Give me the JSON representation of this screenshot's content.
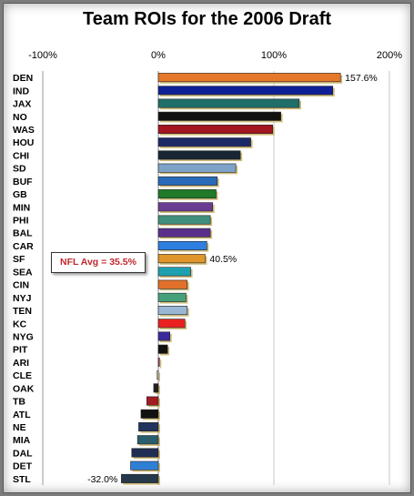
{
  "chart_data": {
    "type": "bar",
    "orientation": "horizontal",
    "title": "Team ROIs for the 2006 Draft",
    "xlim": [
      -100,
      200
    ],
    "xticks": [
      "-100%",
      "0%",
      "100%",
      "200%"
    ],
    "categories": [
      "DEN",
      "IND",
      "JAX",
      "NO",
      "WAS",
      "HOU",
      "CHI",
      "SD",
      "BUF",
      "GB",
      "MIN",
      "PHI",
      "BAL",
      "CAR",
      "SF",
      "SEA",
      "CIN",
      "NYJ",
      "TEN",
      "KC",
      "NYG",
      "PIT",
      "ARI",
      "CLE",
      "OAK",
      "TB",
      "ATL",
      "NE",
      "MIA",
      "DAL",
      "DET",
      "STL"
    ],
    "values": [
      157.6,
      151,
      122,
      106,
      99,
      80,
      71,
      67,
      51,
      50,
      47,
      45,
      45,
      42,
      40.5,
      28,
      25,
      24,
      25,
      23,
      10,
      8,
      1,
      -1,
      -4,
      -10,
      -15,
      -17,
      -18,
      -23,
      -24,
      -32.0
    ],
    "colors": [
      "#e6782b",
      "#0f1f96",
      "#1f6e6a",
      "#111111",
      "#a31520",
      "#1d2a66",
      "#182534",
      "#7ea2c8",
      "#2a6ab8",
      "#1f7a2a",
      "#6a3d92",
      "#3f8f7c",
      "#5a2f8c",
      "#2f7fe0",
      "#e0962a",
      "#1fa0b0",
      "#e0702a",
      "#46a07a",
      "#9bb7d6",
      "#ea2020",
      "#3a2a9c",
      "#101010",
      "#b6323a",
      "#ececec",
      "#202020",
      "#a21b24",
      "#111111",
      "#21335e",
      "#2b5e6c",
      "#1f2e52",
      "#2f7fd6",
      "#26394a"
    ],
    "data_labels": {
      "DEN": "157.6%",
      "SF": "40.5%",
      "STL": "-32.0%"
    },
    "annotation": "NFL Avg = 35.5%",
    "grid": "vertical"
  }
}
